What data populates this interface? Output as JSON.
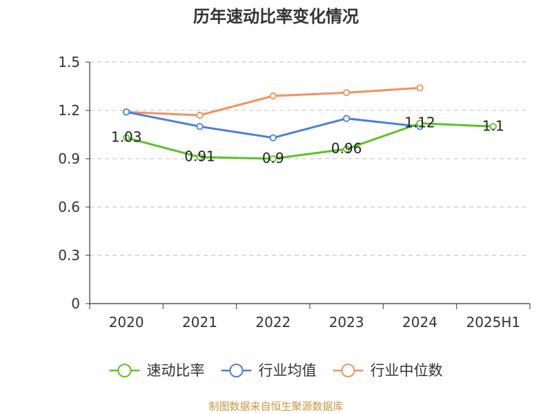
{
  "chart_data": {
    "type": "line",
    "title": "历年速动比率变化情况",
    "categories": [
      "2020",
      "2021",
      "2022",
      "2023",
      "2024",
      "2025H1"
    ],
    "ylim": [
      0,
      1.5
    ],
    "yticks": [
      "0",
      "0.3",
      "0.6",
      "0.9",
      "1.2",
      "1.5"
    ],
    "grid": true,
    "legend_position": "bottom",
    "series": [
      {
        "name": "速动比率",
        "color": "#5bc225",
        "values": [
          1.03,
          0.91,
          0.9,
          0.96,
          1.12,
          1.1
        ],
        "labels": [
          "1.03",
          "0.91",
          "0.9",
          "0.96",
          "1.12",
          "1.1"
        ]
      },
      {
        "name": "行业均值",
        "color": "#4a7fdc",
        "values": [
          1.19,
          1.1,
          1.03,
          1.15,
          1.1,
          null
        ]
      },
      {
        "name": "行业中位数",
        "color": "#f5915a",
        "values": [
          1.19,
          1.17,
          1.29,
          1.31,
          1.34,
          null
        ]
      }
    ]
  },
  "source": "制图数据来自恒生聚源数据库"
}
